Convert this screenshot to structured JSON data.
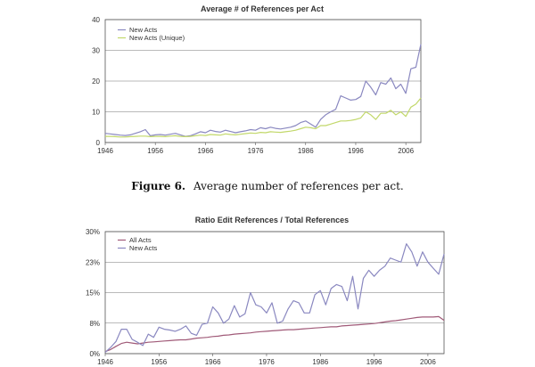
{
  "caption": {
    "label": "Figure 6.",
    "text": "Average number of references per act."
  },
  "chart_data": [
    {
      "type": "line",
      "title": "Average # of References per Act",
      "xlabel": "",
      "ylabel": "",
      "xlim": [
        1946,
        2009
      ],
      "ylim": [
        0,
        40
      ],
      "x_ticks": [
        1946,
        1956,
        1966,
        1976,
        1986,
        1996,
        2006
      ],
      "y_ticks": [
        0,
        10,
        20,
        30,
        40
      ],
      "grid": true,
      "legend_position": "top-left",
      "x": [
        1946,
        1947,
        1948,
        1949,
        1950,
        1951,
        1952,
        1953,
        1954,
        1955,
        1956,
        1957,
        1958,
        1959,
        1960,
        1961,
        1962,
        1963,
        1964,
        1965,
        1966,
        1967,
        1968,
        1969,
        1970,
        1971,
        1972,
        1973,
        1974,
        1975,
        1976,
        1977,
        1978,
        1979,
        1980,
        1981,
        1982,
        1983,
        1984,
        1985,
        1986,
        1987,
        1988,
        1989,
        1990,
        1991,
        1992,
        1993,
        1994,
        1995,
        1996,
        1997,
        1998,
        1999,
        2000,
        2001,
        2002,
        2003,
        2004,
        2005,
        2006,
        2007,
        2008,
        2009
      ],
      "series": [
        {
          "name": "New Acts",
          "color": "#8a88c0",
          "values": [
            3.0,
            2.8,
            2.6,
            2.4,
            2.3,
            2.5,
            3.0,
            3.5,
            4.2,
            2.2,
            2.5,
            2.6,
            2.4,
            2.7,
            3.0,
            2.5,
            2.0,
            2.2,
            2.8,
            3.5,
            3.2,
            4.0,
            3.6,
            3.4,
            4.0,
            3.6,
            3.2,
            3.5,
            3.8,
            4.2,
            4.0,
            4.8,
            4.5,
            5.0,
            4.6,
            4.4,
            4.7,
            5.0,
            5.5,
            6.5,
            7.0,
            6.0,
            5.0,
            7.5,
            9.0,
            10.0,
            10.8,
            15.2,
            14.5,
            13.8,
            14.0,
            15.0,
            20.0,
            18.0,
            15.5,
            19.5,
            19.0,
            21.0,
            17.5,
            19.0,
            16.0,
            24.0,
            24.5,
            32.0
          ]
        },
        {
          "name": "New Acts (Unique)",
          "color": "#c2d86a",
          "values": [
            2.0,
            2.0,
            1.9,
            1.8,
            1.8,
            1.9,
            2.0,
            2.1,
            2.1,
            1.9,
            2.0,
            2.0,
            1.9,
            2.1,
            2.2,
            2.0,
            1.9,
            2.0,
            2.2,
            2.4,
            2.3,
            2.6,
            2.5,
            2.4,
            2.8,
            2.6,
            2.5,
            2.7,
            2.9,
            3.1,
            3.0,
            3.3,
            3.2,
            3.5,
            3.4,
            3.3,
            3.5,
            3.7,
            4.0,
            4.5,
            5.0,
            4.8,
            4.5,
            5.5,
            5.5,
            6.0,
            6.5,
            7.0,
            7.0,
            7.2,
            7.5,
            8.0,
            10.0,
            9.0,
            7.5,
            9.5,
            9.5,
            10.5,
            9.0,
            10.0,
            8.5,
            11.5,
            12.5,
            14.5
          ]
        }
      ]
    },
    {
      "type": "line",
      "title": "Ratio Edit References / Total References",
      "xlabel": "",
      "ylabel": "",
      "xlim": [
        1946,
        2009
      ],
      "ylim": [
        0,
        30
      ],
      "x_ticks": [
        1946,
        1956,
        1966,
        1976,
        1986,
        1996,
        2006
      ],
      "y_ticks": [
        0,
        7.5,
        15,
        22.5,
        30
      ],
      "y_tick_labels": [
        "0%",
        "8%",
        "15%",
        "23%",
        "30%"
      ],
      "grid": true,
      "legend_position": "top-left",
      "x": [
        1946,
        1947,
        1948,
        1949,
        1950,
        1951,
        1952,
        1953,
        1954,
        1955,
        1956,
        1957,
        1958,
        1959,
        1960,
        1961,
        1962,
        1963,
        1964,
        1965,
        1966,
        1967,
        1968,
        1969,
        1970,
        1971,
        1972,
        1973,
        1974,
        1975,
        1976,
        1977,
        1978,
        1979,
        1980,
        1981,
        1982,
        1983,
        1984,
        1985,
        1986,
        1987,
        1988,
        1989,
        1990,
        1991,
        1992,
        1993,
        1994,
        1995,
        1996,
        1997,
        1998,
        1999,
        2000,
        2001,
        2002,
        2003,
        2004,
        2005,
        2006,
        2007,
        2008,
        2009
      ],
      "series": [
        {
          "name": "All Acts",
          "color": "#a05a78",
          "values": [
            0.5,
            1.0,
            1.8,
            2.5,
            2.8,
            2.6,
            2.4,
            2.6,
            2.8,
            2.9,
            3.0,
            3.1,
            3.2,
            3.3,
            3.4,
            3.4,
            3.6,
            3.8,
            3.9,
            4.0,
            4.2,
            4.3,
            4.5,
            4.6,
            4.8,
            4.9,
            5.0,
            5.1,
            5.3,
            5.4,
            5.5,
            5.6,
            5.7,
            5.8,
            5.9,
            5.9,
            6.0,
            6.1,
            6.2,
            6.3,
            6.4,
            6.5,
            6.6,
            6.6,
            6.8,
            6.9,
            7.0,
            7.1,
            7.2,
            7.3,
            7.4,
            7.6,
            7.8,
            8.0,
            8.1,
            8.3,
            8.5,
            8.7,
            8.9,
            9.0,
            9.0,
            9.0,
            9.1,
            8.2
          ]
        },
        {
          "name": "New Acts",
          "color": "#8a88c0",
          "values": [
            0.3,
            1.5,
            3.0,
            6.0,
            6.0,
            3.5,
            2.8,
            2.0,
            4.8,
            4.0,
            6.5,
            6.0,
            5.8,
            5.5,
            6.0,
            6.8,
            5.0,
            4.5,
            7.2,
            7.5,
            11.5,
            10.0,
            7.5,
            8.5,
            11.8,
            9.0,
            9.8,
            15.0,
            12.0,
            11.5,
            10.0,
            12.5,
            7.5,
            8.0,
            11.0,
            13.0,
            12.5,
            10.0,
            10.0,
            14.5,
            15.5,
            12.0,
            16.0,
            17.0,
            16.5,
            13.0,
            19.0,
            11.0,
            18.5,
            20.5,
            19.0,
            20.5,
            21.5,
            23.5,
            23.0,
            22.5,
            27.0,
            25.0,
            21.5,
            25.0,
            22.5,
            21.0,
            19.5,
            24.5
          ]
        }
      ]
    }
  ]
}
